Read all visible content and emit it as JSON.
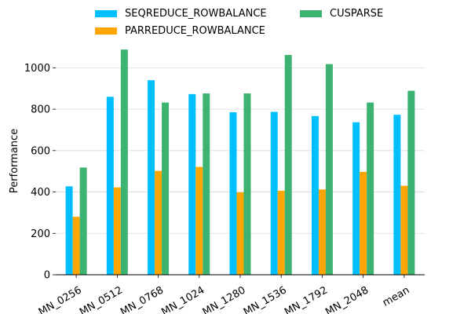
{
  "chart_data": {
    "type": "bar",
    "categories": [
      "MN_0256",
      "MN_0512",
      "MN_0768",
      "MN_1024",
      "MN_1280",
      "MN_1536",
      "MN_1792",
      "MN_2048",
      "mean"
    ],
    "series": [
      {
        "name": "SEQREDUCE_ROWBALANCE",
        "color": "#00bfff",
        "values": [
          427,
          860,
          940,
          873,
          785,
          787,
          767,
          737,
          773
        ]
      },
      {
        "name": "PARREDUCE_ROWBALANCE",
        "color": "#ffa500",
        "values": [
          280,
          422,
          502,
          521,
          398,
          406,
          412,
          497,
          430
        ]
      },
      {
        "name": "CUSPARSE",
        "color": "#3cb371",
        "values": [
          518,
          1088,
          832,
          876,
          876,
          1062,
          1018,
          832,
          889
        ]
      }
    ],
    "ylabel": "Performance",
    "xlabel": "",
    "ylim": [
      0,
      1100
    ],
    "yticks": [
      0,
      200,
      400,
      600,
      800,
      1000
    ],
    "grid": "horizontal",
    "legend": "top"
  }
}
